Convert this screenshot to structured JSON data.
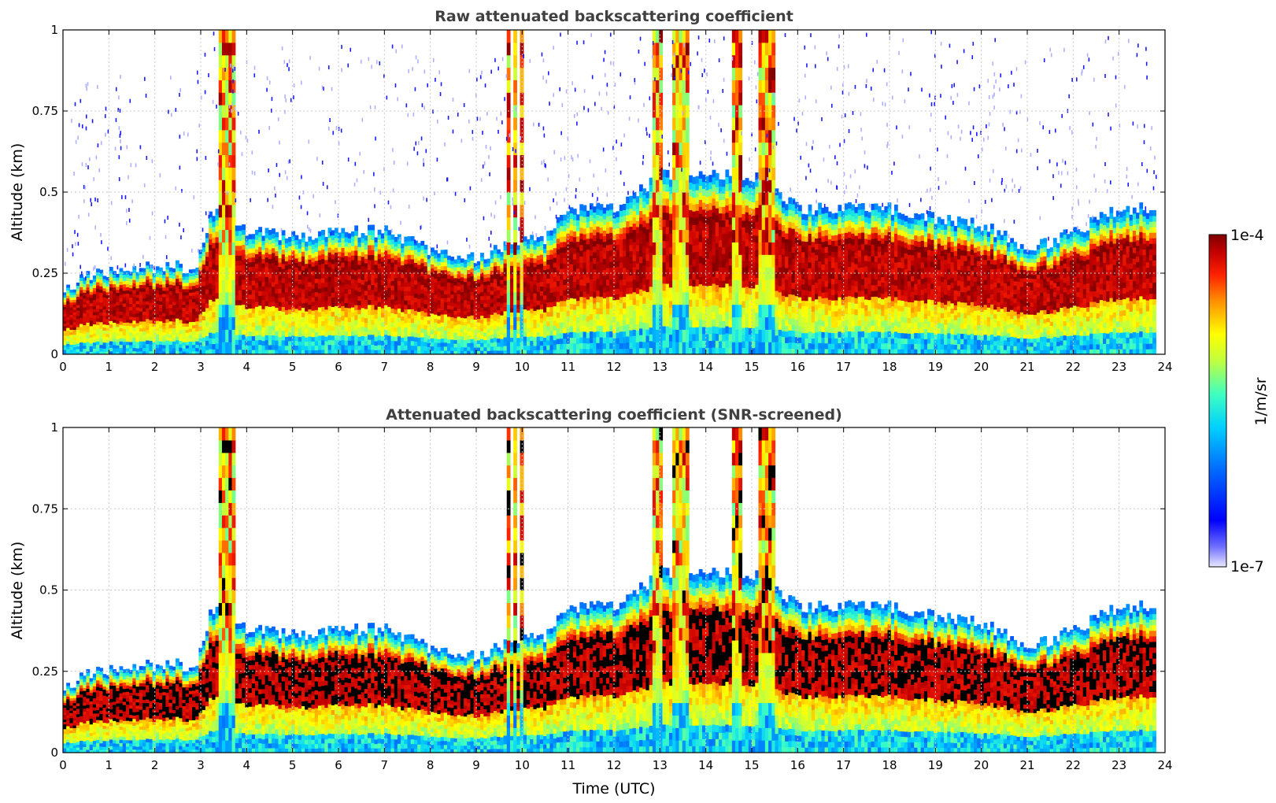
{
  "chart_data": [
    {
      "type": "heatmap",
      "title": "Raw attenuated backscattering coefficient",
      "xlabel": "",
      "ylabel": "Altitude (km)",
      "xlim": [
        0,
        24
      ],
      "ylim": [
        0,
        1
      ],
      "xticks": [
        "0",
        "1",
        "2",
        "3",
        "4",
        "5",
        "6",
        "7",
        "8",
        "9",
        "10",
        "11",
        "12",
        "13",
        "14",
        "15",
        "16",
        "17",
        "18",
        "19",
        "20",
        "21",
        "22",
        "23",
        "24"
      ],
      "yticks": [
        "0",
        "0.25",
        "0.5",
        "0.75",
        "1"
      ],
      "grid": true,
      "layer_top_km": {
        "times": [
          0,
          0.5,
          1,
          2,
          2.9,
          3.2,
          4,
          5,
          6,
          7,
          8,
          9,
          9.8,
          10.5,
          11,
          12,
          13,
          14,
          15,
          16,
          17,
          18,
          19,
          20,
          21,
          22,
          23,
          23.8
        ],
        "values": [
          0.2,
          0.24,
          0.26,
          0.27,
          0.27,
          0.45,
          0.38,
          0.36,
          0.38,
          0.38,
          0.32,
          0.3,
          0.34,
          0.36,
          0.45,
          0.45,
          0.55,
          0.55,
          0.55,
          0.45,
          0.45,
          0.45,
          0.42,
          0.4,
          0.32,
          0.38,
          0.45,
          0.45
        ]
      },
      "tall_plumes_utc": [
        3.5,
        9.8,
        12.9,
        13.4,
        14.6,
        15.3
      ],
      "note": "Scattered sensor noise visible above the boundary layer"
    },
    {
      "type": "heatmap",
      "title": "Attenuated backscattering coefficient (SNR-screened)",
      "xlabel": "Time (UTC)",
      "ylabel": "Altitude (km)",
      "xlim": [
        0,
        24
      ],
      "ylim": [
        0,
        1
      ],
      "xticks": [
        "0",
        "1",
        "2",
        "3",
        "4",
        "5",
        "6",
        "7",
        "8",
        "9",
        "10",
        "11",
        "12",
        "13",
        "14",
        "15",
        "16",
        "17",
        "18",
        "19",
        "20",
        "21",
        "22",
        "23",
        "24"
      ],
      "yticks": [
        "0",
        "0.25",
        "0.5",
        "0.75",
        "1"
      ],
      "grid": true,
      "layer_top_km": {
        "times": [
          0,
          0.5,
          1,
          2,
          2.9,
          3.2,
          4,
          5,
          6,
          7,
          8,
          9,
          9.8,
          10.5,
          11,
          12,
          13,
          14,
          15,
          16,
          17,
          18,
          19,
          20,
          21,
          22,
          23,
          23.8
        ],
        "values": [
          0.2,
          0.24,
          0.26,
          0.27,
          0.27,
          0.45,
          0.38,
          0.36,
          0.38,
          0.38,
          0.32,
          0.3,
          0.34,
          0.36,
          0.45,
          0.45,
          0.55,
          0.55,
          0.55,
          0.45,
          0.45,
          0.45,
          0.42,
          0.4,
          0.32,
          0.38,
          0.45,
          0.45
        ]
      },
      "tall_plumes_utc": [
        3.5,
        9.8,
        12.9,
        13.4,
        14.6,
        15.3
      ],
      "note": "Saturated core rendered in black"
    }
  ],
  "colorbar": {
    "label": "1/m/sr",
    "max_label": "1e-4",
    "min_label": "1e-7",
    "colormap": "jet",
    "min_color": "#e8e8ff",
    "max_color": "#800000"
  },
  "colors": {
    "title": "#404040",
    "grid": "#c8c8c8",
    "saturated": "#000000"
  }
}
